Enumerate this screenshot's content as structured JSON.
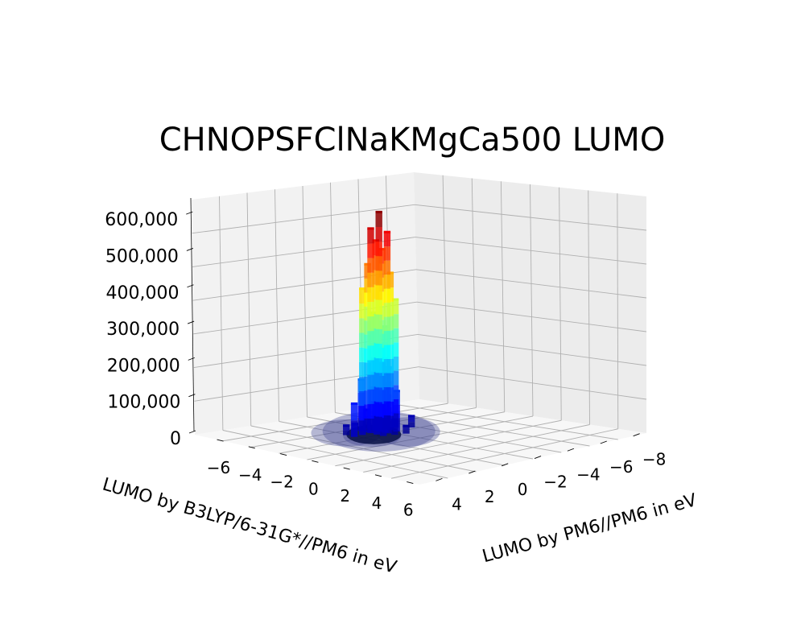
{
  "chart_data": {
    "type": "3d-histogram",
    "title": "CHNOPSFClNaKMgCa500 LUMO",
    "xlabel": "LUMO by B3LYP/6-31G*//PM6 in eV",
    "ylabel": "LUMO by PM6//PM6 in eV",
    "zlabel": "",
    "x_ticks": [
      "−6",
      "−4",
      "−2",
      "0",
      "2",
      "4",
      "6"
    ],
    "y_ticks": [
      "4",
      "2",
      "0",
      "−2",
      "−4",
      "−6",
      "−8"
    ],
    "z_ticks": [
      "0",
      "100,000",
      "200,000",
      "300,000",
      "400,000",
      "500,000",
      "600,000"
    ],
    "zlim": [
      0,
      640000
    ],
    "colormap": "jet",
    "grid": true,
    "peak": {
      "x": -2.0,
      "y": -1.0,
      "z": 600000
    },
    "bars": [
      {
        "x": -2.0,
        "y": -1.0,
        "z": 600000
      },
      {
        "x": -2.0,
        "y": -0.5,
        "z": 560000
      },
      {
        "x": -2.0,
        "y": -1.5,
        "z": 540000
      },
      {
        "x": -2.2,
        "y": -1.0,
        "z": 520000
      },
      {
        "x": -1.8,
        "y": -1.0,
        "z": 500000
      },
      {
        "x": -2.2,
        "y": -0.5,
        "z": 460000
      },
      {
        "x": -1.8,
        "y": -1.5,
        "z": 430000
      },
      {
        "x": -2.0,
        "y": 0.0,
        "z": 400000
      },
      {
        "x": -2.0,
        "y": -2.0,
        "z": 350000
      },
      {
        "x": -2.4,
        "y": -1.0,
        "z": 320000
      },
      {
        "x": -1.6,
        "y": -1.0,
        "z": 290000
      },
      {
        "x": -1.6,
        "y": -0.5,
        "z": 250000
      },
      {
        "x": -2.4,
        "y": -1.5,
        "z": 220000
      },
      {
        "x": -1.4,
        "y": -1.0,
        "z": 180000
      },
      {
        "x": -2.6,
        "y": -0.5,
        "z": 140000
      },
      {
        "x": -1.4,
        "y": -1.5,
        "z": 110000
      },
      {
        "x": -2.0,
        "y": 0.5,
        "z": 90000
      },
      {
        "x": -1.2,
        "y": -0.5,
        "z": 70000
      },
      {
        "x": -2.8,
        "y": -1.0,
        "z": 50000
      },
      {
        "x": -1.0,
        "y": -1.0,
        "z": 40000
      },
      {
        "x": -1.5,
        "y": -2.5,
        "z": 30000
      },
      {
        "x": -2.5,
        "y": 0.5,
        "z": 25000
      },
      {
        "x": -0.8,
        "y": -1.5,
        "z": 20000
      },
      {
        "x": -3.0,
        "y": -0.5,
        "z": 15000
      }
    ]
  }
}
